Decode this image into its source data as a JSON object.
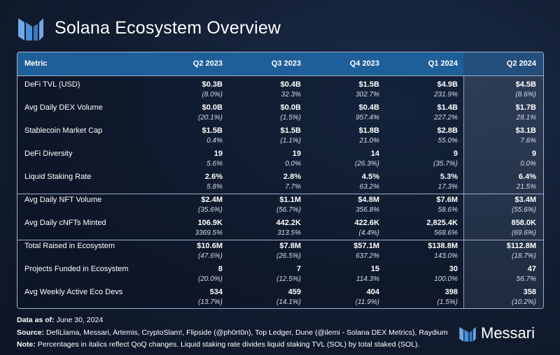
{
  "title": "Solana Ecosystem Overview",
  "colors": {
    "header_bg": "#1e5f99",
    "background": "#111c30",
    "highlight_column": "#3c4e68",
    "logo_blue": "#4a90d9"
  },
  "table": {
    "columns": [
      "Metric",
      "Q2 2023",
      "Q3 2023",
      "Q4 2023",
      "Q1 2024",
      "Q2 2024"
    ],
    "rows": [
      {
        "metric": "DeFi TVL (USD)",
        "values": [
          "$0.3B",
          "$0.4B",
          "$1.5B",
          "$4.9B",
          "$4.5B"
        ],
        "changes": [
          "(8.0%)",
          "32.3%",
          "302.7%",
          "231.9%",
          "(8.6%)"
        ]
      },
      {
        "metric": "Avg Daily DEX Volume",
        "values": [
          "$0.0B",
          "$0.0B",
          "$0.4B",
          "$1.4B",
          "$1.7B"
        ],
        "changes": [
          "(20.1%)",
          "(1.5%)",
          "957.4%",
          "227.2%",
          "28.1%"
        ]
      },
      {
        "metric": "Stablecoin Market Cap",
        "values": [
          "$1.5B",
          "$1.5B",
          "$1.8B",
          "$2.8B",
          "$3.1B"
        ],
        "changes": [
          "0.4%",
          "(1.1%)",
          "21.0%",
          "55.0%",
          "7.6%"
        ]
      },
      {
        "metric": "DeFi Diversity",
        "values": [
          "19",
          "19",
          "14",
          "9",
          "9"
        ],
        "changes": [
          "5.6%",
          "0.0%",
          "(26.3%)",
          "(35.7%)",
          "0.0%"
        ]
      },
      {
        "metric": "Liquid Staking Rate",
        "values": [
          "2.6%",
          "2.8%",
          "4.5%",
          "5.3%",
          "6.4%"
        ],
        "changes": [
          "5.8%",
          "7.7%",
          "63.2%",
          "17.3%",
          "21.5%"
        ]
      },
      {
        "metric": "Avg Daily NFT Volume",
        "values": [
          "$2.4M",
          "$1.1M",
          "$4.8M",
          "$7.6M",
          "$3.4M"
        ],
        "changes": [
          "(35.6%)",
          "(56.7%)",
          "356.8%",
          "58.6%",
          "(55.6%)"
        ]
      },
      {
        "metric": "Avg Daily cNFTs Minted",
        "values": [
          "106.9K",
          "442.2K",
          "422.6K",
          "2,825.4K",
          "858.0K"
        ],
        "changes": [
          "3369.5%",
          "313.5%",
          "(4.4%)",
          "568.6%",
          "(69.6%)"
        ]
      },
      {
        "metric": "Total Raised in Ecosystem",
        "values": [
          "$10.6M",
          "$7.8M",
          "$57.1M",
          "$138.8M",
          "$112.8M"
        ],
        "changes": [
          "(47.6%)",
          "(26.5%)",
          "637.2%",
          "143.0%",
          "(18.7%)"
        ]
      },
      {
        "metric": "Projects Funded in Ecosystem",
        "values": [
          "8",
          "7",
          "15",
          "30",
          "47"
        ],
        "changes": [
          "(20.0%)",
          "(12.5%)",
          "114.3%",
          "100.0%",
          "56.7%"
        ]
      },
      {
        "metric": "Avg Weekly Active Eco Devs",
        "values": [
          "534",
          "459",
          "404",
          "398",
          "358"
        ],
        "changes": [
          "(13.7%)",
          "(14.1%)",
          "(11.9%)",
          "(1.5%)",
          "(10.2%)"
        ]
      }
    ]
  },
  "footer": {
    "date_label": "Data as of:",
    "date_value": "June 30, 2024",
    "source_label": "Source:",
    "source_value": "DefiLlama, Messari, Artemis, CryptoSlam!, Flipside (@ph0rt0n), Top Ledger, Dune (@ilemi - Solana DEX Metrics), Raydium",
    "note_label": "Note:",
    "note_value": "Percentages in italics reflect QoQ changes. Liquid staking rate divides liquid staking TVL (SOL) by total staked (SOL)."
  },
  "brand": {
    "name": "Messari",
    "logo_icon": "messari-logo-icon"
  }
}
